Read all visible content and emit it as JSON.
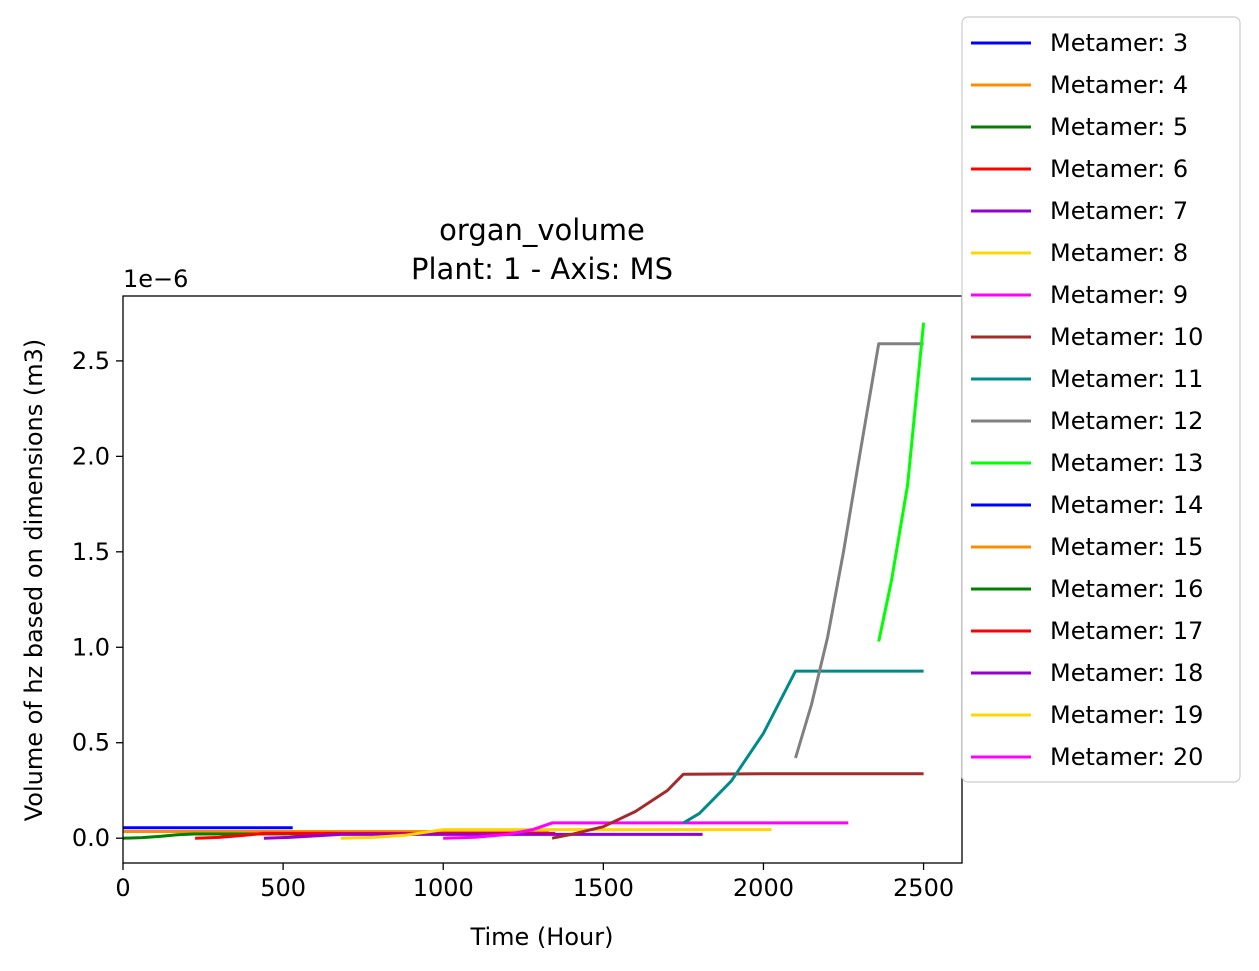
{
  "chart_data": {
    "type": "line",
    "title": "organ_volume",
    "subtitle": "Plant: 1 - Axis: MS",
    "xlabel": "Time (Hour)",
    "ylabel": "Volume of hz based on dimensions (m3)",
    "y_scale_label": "1e−6",
    "xlim": [
      0,
      2620
    ],
    "ylim": [
      -0.13,
      2.84
    ],
    "x_ticks": [
      0,
      500,
      1000,
      1500,
      2000,
      2500
    ],
    "x_tick_labels": [
      "0",
      "500",
      "1000",
      "1500",
      "2000",
      "2500"
    ],
    "y_ticks": [
      0.0,
      0.5,
      1.0,
      1.5,
      2.0,
      2.5
    ],
    "y_tick_labels": [
      "0.0",
      "0.5",
      "1.0",
      "1.5",
      "2.0",
      "2.5"
    ],
    "grid": false,
    "legend_position": "outside-right",
    "series": [
      {
        "name": "Metamer: 3",
        "color": "#0000ff",
        "points": [
          [
            0,
            0.055
          ],
          [
            530,
            0.055
          ]
        ]
      },
      {
        "name": "Metamer: 4",
        "color": "#ff8c00",
        "points": [
          [
            0,
            0.035
          ],
          [
            530,
            0.035
          ],
          [
            1000,
            0.035
          ],
          [
            1330,
            0.035
          ]
        ]
      },
      {
        "name": "Metamer: 5",
        "color": "#008000",
        "points": [
          [
            0,
            0.0
          ],
          [
            60,
            0.003
          ],
          [
            120,
            0.01
          ],
          [
            170,
            0.018
          ],
          [
            220,
            0.022
          ],
          [
            500,
            0.022
          ],
          [
            1000,
            0.022
          ]
        ]
      },
      {
        "name": "Metamer: 6",
        "color": "#ff0000",
        "points": [
          [
            225,
            0.0
          ],
          [
            300,
            0.004
          ],
          [
            380,
            0.015
          ],
          [
            440,
            0.025
          ],
          [
            1000,
            0.025
          ],
          [
            1350,
            0.025
          ]
        ]
      },
      {
        "name": "Metamer: 7",
        "color": "#9400d3",
        "points": [
          [
            440,
            0.0
          ],
          [
            520,
            0.004
          ],
          [
            600,
            0.012
          ],
          [
            680,
            0.02
          ],
          [
            1000,
            0.02
          ],
          [
            1500,
            0.02
          ],
          [
            1810,
            0.02
          ]
        ]
      },
      {
        "name": "Metamer: 8",
        "color": "#ffd700",
        "points": [
          [
            680,
            0.0
          ],
          [
            780,
            0.004
          ],
          [
            880,
            0.015
          ],
          [
            1000,
            0.045
          ],
          [
            1500,
            0.045
          ],
          [
            2025,
            0.045
          ]
        ]
      },
      {
        "name": "Metamer: 9",
        "color": "#ff00ff",
        "points": [
          [
            1000,
            0.0
          ],
          [
            1100,
            0.005
          ],
          [
            1200,
            0.02
          ],
          [
            1280,
            0.045
          ],
          [
            1340,
            0.08
          ],
          [
            1800,
            0.08
          ],
          [
            2265,
            0.08
          ]
        ]
      },
      {
        "name": "Metamer: 10",
        "color": "#a52a2a",
        "points": [
          [
            1340,
            0.0
          ],
          [
            1400,
            0.02
          ],
          [
            1500,
            0.06
          ],
          [
            1600,
            0.14
          ],
          [
            1700,
            0.25
          ],
          [
            1750,
            0.335
          ],
          [
            2000,
            0.337
          ],
          [
            2500,
            0.337
          ]
        ]
      },
      {
        "name": "Metamer: 11",
        "color": "#008b8b",
        "points": [
          [
            1750,
            0.08
          ],
          [
            1800,
            0.13
          ],
          [
            1900,
            0.3
          ],
          [
            2000,
            0.55
          ],
          [
            2100,
            0.875
          ],
          [
            2300,
            0.875
          ],
          [
            2500,
            0.875
          ]
        ]
      },
      {
        "name": "Metamer: 12",
        "color": "#808080",
        "points": [
          [
            2100,
            0.42
          ],
          [
            2150,
            0.7
          ],
          [
            2200,
            1.05
          ],
          [
            2250,
            1.5
          ],
          [
            2300,
            2.0
          ],
          [
            2360,
            2.59
          ],
          [
            2500,
            2.59
          ]
        ]
      },
      {
        "name": "Metamer: 13",
        "color": "#00ff00",
        "points": [
          [
            2360,
            1.03
          ],
          [
            2400,
            1.35
          ],
          [
            2450,
            1.85
          ],
          [
            2500,
            2.7
          ]
        ]
      },
      {
        "name": "Metamer: 14",
        "color": "#0000ff",
        "points": []
      },
      {
        "name": "Metamer: 15",
        "color": "#ff8c00",
        "points": []
      },
      {
        "name": "Metamer: 16",
        "color": "#008000",
        "points": []
      },
      {
        "name": "Metamer: 17",
        "color": "#ff0000",
        "points": []
      },
      {
        "name": "Metamer: 18",
        "color": "#9400d3",
        "points": []
      },
      {
        "name": "Metamer: 19",
        "color": "#ffd700",
        "points": []
      },
      {
        "name": "Metamer: 20",
        "color": "#ff00ff",
        "points": []
      }
    ]
  }
}
